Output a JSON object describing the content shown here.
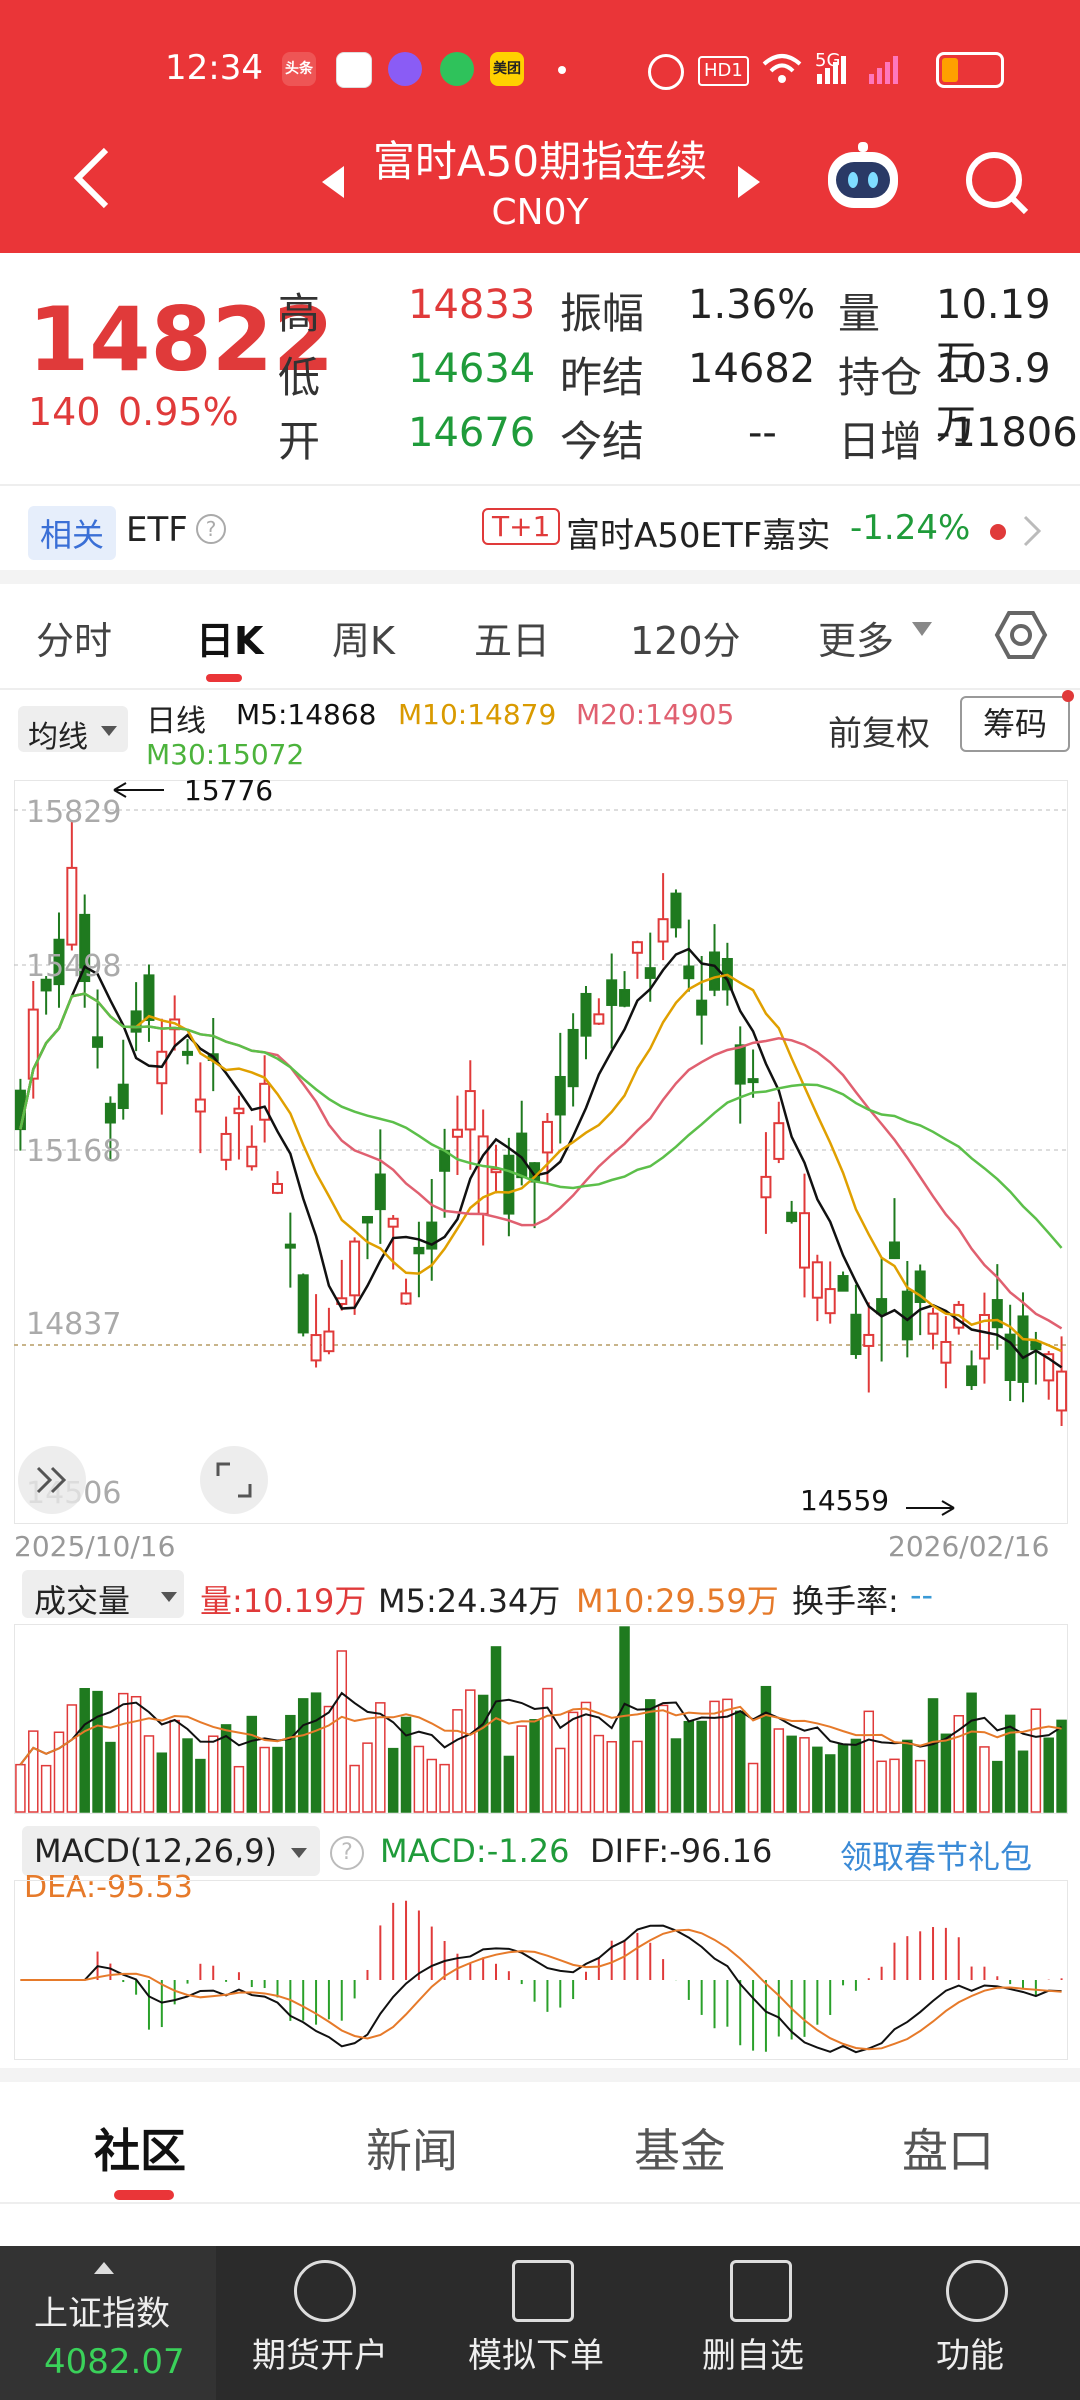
{
  "status_bar": {
    "time": "12:34",
    "app_badges": [
      "头条",
      "美团"
    ],
    "hd_label": "HD1",
    "signal": "5G"
  },
  "header": {
    "title": "富时A50期指连续",
    "subtitle": "CN0Y"
  },
  "quote": {
    "price": "14822",
    "change": "140",
    "change_pct": "0.95%",
    "stats": [
      {
        "label": "高",
        "value": "14833"
      },
      {
        "label": "振幅",
        "value": "1.36%"
      },
      {
        "label": "量",
        "value": "10.19万"
      },
      {
        "label": "低",
        "value": "14634"
      },
      {
        "label": "昨结",
        "value": "14682"
      },
      {
        "label": "持仓",
        "value": "103.9万"
      },
      {
        "label": "开",
        "value": "14676"
      },
      {
        "label": "今结",
        "value": "--"
      },
      {
        "label": "日增",
        "value": "-11806"
      }
    ]
  },
  "etf": {
    "tag": "相关",
    "label": "ETF",
    "badge": "T+1",
    "name": "富时A50ETF嘉实",
    "change": "-1.24%"
  },
  "tabs": [
    "分时",
    "日K",
    "周K",
    "五日",
    "120分",
    "更多"
  ],
  "chart_bar": {
    "ma_select": "均线",
    "period": "日线",
    "ma": [
      "M5:14868",
      "M10:14879",
      "M20:14905",
      "M30:15072"
    ],
    "adjust": "前复权",
    "chips": "筹码"
  },
  "kline": {
    "y_labels": [
      "15829",
      "15498",
      "15168",
      "14837",
      "14506"
    ],
    "max_label": "15776",
    "min_label": "14559",
    "start_date": "2025/10/16",
    "end_date": "2026/02/16"
  },
  "volume": {
    "select": "成交量",
    "vol": "量:10.19万",
    "m5": "M5:24.34万",
    "m10": "M10:29.59万",
    "turnover_label": "换手率:",
    "turnover": "--"
  },
  "macd": {
    "select": "MACD(12,26,9)",
    "macd": "MACD:-1.26",
    "diff": "DIFF:-96.16",
    "dea": "DEA:-95.53",
    "promo": "领取春节礼包"
  },
  "bottom_tabs": [
    "社区",
    "新闻",
    "基金",
    "盘口"
  ],
  "bottom_bar": {
    "index_name": "上证指数",
    "index_value": "4082.07",
    "buttons": [
      "期货开户",
      "模拟下单",
      "删自选",
      "功能"
    ]
  },
  "colors": {
    "brand_red": "#ea3538",
    "up": "#e03a3a",
    "down": "#1f7a1f",
    "ma5": "#111111",
    "ma10": "#e0a000",
    "ma20": "#e06070",
    "ma30": "#5cbf4a"
  }
}
